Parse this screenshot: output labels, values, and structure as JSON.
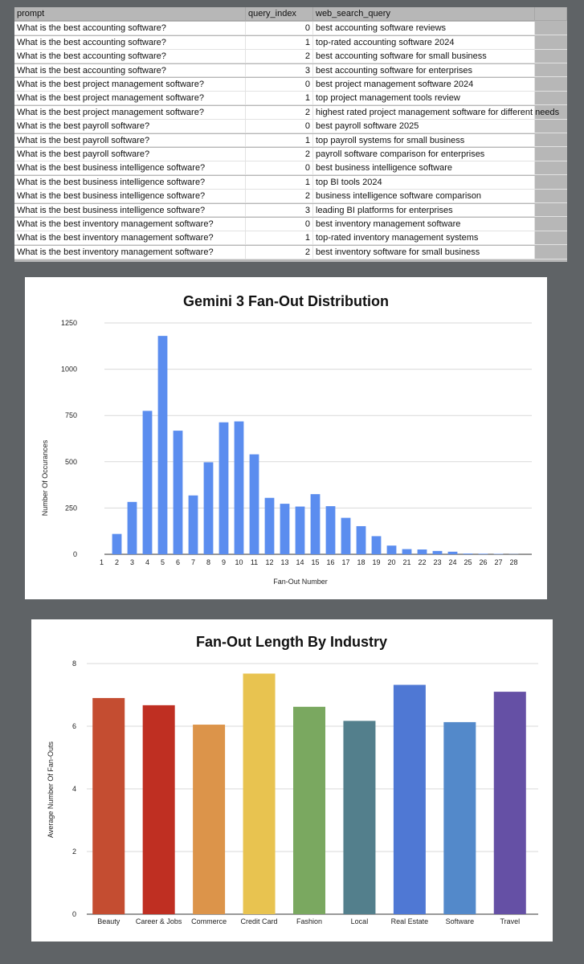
{
  "sheet": {
    "headers": [
      "prompt",
      "query_index",
      "web_search_query"
    ],
    "rows": [
      [
        "What is the best accounting software?",
        "0",
        "best accounting software reviews"
      ],
      [
        "What is the best accounting software?",
        "1",
        "top-rated accounting software 2024"
      ],
      [
        "What is the best accounting software?",
        "2",
        "best accounting software for small business"
      ],
      [
        "What is the best accounting software?",
        "3",
        "best accounting software for enterprises"
      ],
      [
        "What is the best project management software?",
        "0",
        "best project management software 2024"
      ],
      [
        "What is the best project management software?",
        "1",
        "top project management tools review"
      ],
      [
        "What is the best project management software?",
        "2",
        "highest rated project management software for different needs"
      ],
      [
        "What is the best payroll software?",
        "0",
        "best payroll software 2025"
      ],
      [
        "What is the best payroll software?",
        "1",
        "top payroll systems for small business"
      ],
      [
        "What is the best payroll software?",
        "2",
        "payroll software comparison for enterprises"
      ],
      [
        "What is the best business intelligence software?",
        "0",
        "best business intelligence software"
      ],
      [
        "What is the best business intelligence software?",
        "1",
        "top BI tools 2024"
      ],
      [
        "What is the best business intelligence software?",
        "2",
        "business intelligence software comparison"
      ],
      [
        "What is the best business intelligence software?",
        "3",
        "leading BI platforms for enterprises"
      ],
      [
        "What is the best inventory management software?",
        "0",
        "best inventory management software"
      ],
      [
        "What is the best inventory management software?",
        "1",
        "top-rated inventory management systems"
      ],
      [
        "What is the best inventory management software?",
        "2",
        "best inventory software for small business"
      ]
    ]
  },
  "chart_data": [
    {
      "type": "bar",
      "title": "Gemini 3 Fan-Out Distribution",
      "xlabel": "Fan-Out Number",
      "ylabel": "Number Of Occurances",
      "ylim": [
        0,
        1250
      ],
      "yticks": [
        0,
        250,
        500,
        750,
        1000,
        1250
      ],
      "grid": true,
      "color": "#5b8def",
      "categories": [
        "1",
        "2",
        "3",
        "4",
        "5",
        "6",
        "7",
        "8",
        "9",
        "10",
        "11",
        "12",
        "13",
        "14",
        "15",
        "16",
        "17",
        "18",
        "19",
        "20",
        "21",
        "22",
        "23",
        "24",
        "25",
        "26",
        "27",
        "28"
      ],
      "values": [
        0,
        110,
        283,
        775,
        1180,
        668,
        318,
        497,
        713,
        718,
        540,
        305,
        273,
        258,
        325,
        260,
        197,
        152,
        98,
        47,
        28,
        26,
        18,
        14,
        4,
        3,
        2,
        1
      ]
    },
    {
      "type": "bar",
      "title": "Fan-Out Length By Industry",
      "xlabel": "",
      "ylabel": "Average Number Of Fan-Outs",
      "ylim": [
        0,
        8
      ],
      "yticks": [
        0,
        2,
        4,
        6,
        8
      ],
      "grid": true,
      "categories": [
        "Beauty",
        "Career & Jobs",
        "Commerce",
        "Credit Card",
        "Fashion",
        "Local",
        "Real Estate",
        "Software",
        "Travel"
      ],
      "values": [
        6.9,
        6.67,
        6.05,
        7.68,
        6.62,
        6.17,
        7.32,
        6.13,
        7.1
      ],
      "colors": [
        "#c44d31",
        "#bf2f22",
        "#dc944a",
        "#e8c350",
        "#7aa860",
        "#537f8c",
        "#4f78d4",
        "#5389ca",
        "#6550a5"
      ]
    }
  ]
}
